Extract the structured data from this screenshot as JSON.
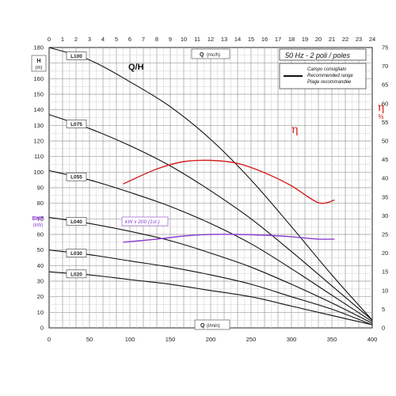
{
  "chart_data": {
    "type": "line",
    "title": "Q/H",
    "frequency_note": "50 Hz - 2 poli / poles",
    "legend": {
      "lines": [
        "Campo consigliato",
        "Recommended range",
        "Plage recommandée"
      ],
      "placement": "top-right"
    },
    "x_top": {
      "label": "Q",
      "unit": "(mc/h)",
      "ticks": [
        0,
        1,
        2,
        3,
        4,
        5,
        6,
        7,
        8,
        9,
        10,
        11,
        12,
        13,
        14,
        15,
        16,
        17,
        18,
        19,
        20,
        21,
        22,
        23,
        24
      ],
      "range": [
        0,
        24
      ]
    },
    "x_bottom": {
      "label": "Q",
      "unit": "(l/min)",
      "ticks": [
        0,
        50,
        100,
        150,
        200,
        250,
        300,
        350,
        400
      ],
      "range": [
        0,
        400
      ]
    },
    "y_left": {
      "label": "H",
      "unit": "(m)",
      "ticks": [
        0,
        10,
        20,
        30,
        40,
        50,
        60,
        70,
        80,
        90,
        100,
        110,
        120,
        130,
        140,
        150,
        160,
        170,
        180
      ],
      "range": [
        0,
        180
      ]
    },
    "y_left_bhp": {
      "label": "BHP",
      "unit": "(kW)"
    },
    "y_right": {
      "symbol": "η",
      "unit": "%",
      "ticks": [
        0,
        5,
        10,
        15,
        20,
        25,
        30,
        35,
        40,
        45,
        50,
        55,
        60,
        65,
        70,
        75
      ],
      "range": [
        0,
        75
      ]
    },
    "grid": true,
    "series": [
      {
        "name": "L100",
        "color": "#111111",
        "x": [
          0,
          3,
          6,
          9,
          12,
          15,
          18,
          21,
          24
        ],
        "y": [
          180,
          172,
          158,
          142,
          121,
          95,
          65,
          34,
          5
        ]
      },
      {
        "name": "L075",
        "color": "#111111",
        "x": [
          0,
          3,
          6,
          9,
          12,
          15,
          18,
          21,
          24
        ],
        "y": [
          137,
          128,
          117,
          104,
          88,
          70,
          49,
          27,
          5
        ]
      },
      {
        "name": "L055",
        "color": "#111111",
        "x": [
          0,
          3,
          6,
          9,
          12,
          15,
          18,
          21,
          24
        ],
        "y": [
          101,
          95,
          87,
          78,
          67,
          54,
          38,
          21,
          4
        ]
      },
      {
        "name": "L040",
        "color": "#111111",
        "x": [
          0,
          3,
          6,
          9,
          12,
          15,
          18,
          21,
          24
        ],
        "y": [
          71,
          67,
          62,
          56,
          48,
          39,
          28,
          16,
          3
        ]
      },
      {
        "name": "L030",
        "color": "#111111",
        "x": [
          0,
          3,
          6,
          9,
          12,
          15,
          18,
          21,
          24
        ],
        "y": [
          50,
          47,
          43,
          39,
          34,
          28,
          20,
          12,
          2
        ]
      },
      {
        "name": "L020",
        "color": "#111111",
        "x": [
          0,
          3,
          6,
          9,
          12,
          15,
          18,
          21,
          24
        ],
        "y": [
          36,
          34,
          31,
          28,
          24,
          20,
          14,
          8,
          2
        ]
      },
      {
        "name": "η",
        "color": "#d42020",
        "axis": "right",
        "x": [
          5.5,
          8,
          10,
          12,
          14,
          16,
          18,
          20,
          21.2
        ],
        "y": [
          38.5,
          42.5,
          44.5,
          44.8,
          44,
          41.5,
          38,
          33.5,
          34.2
        ]
      },
      {
        "name": "kW x 200 (1st.)",
        "color": "#8a3fd0",
        "axis": "left",
        "x": [
          5.5,
          8,
          10,
          12,
          14,
          16,
          18,
          20,
          21.2
        ],
        "y": [
          55,
          57,
          59,
          60,
          60,
          59.5,
          58.5,
          57,
          57
        ]
      }
    ],
    "curve_labels": [
      "L100",
      "L075",
      "L055",
      "L040",
      "L030",
      "L020"
    ],
    "eta_label": "η",
    "kw_label": "kW x 200 (1st.)"
  }
}
